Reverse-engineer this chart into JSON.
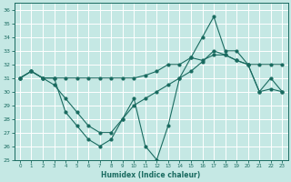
{
  "xlabel": "Humidex (Indice chaleur)",
  "bg_color": "#c5e8e4",
  "line_color": "#1a6b60",
  "grid_color": "#ffffff",
  "xlim": [
    -0.5,
    23.5
  ],
  "ylim": [
    25,
    36.5
  ],
  "yticks": [
    25,
    26,
    27,
    28,
    29,
    30,
    31,
    32,
    33,
    34,
    35,
    36
  ],
  "xticks": [
    0,
    1,
    2,
    3,
    4,
    5,
    6,
    7,
    8,
    9,
    10,
    11,
    12,
    13,
    14,
    15,
    16,
    17,
    18,
    19,
    20,
    21,
    22,
    23
  ],
  "series1_x": [
    0,
    1,
    2,
    3,
    4,
    5,
    6,
    7,
    8,
    9,
    10,
    11,
    12,
    13,
    14,
    15,
    16,
    17,
    18,
    19,
    20,
    21,
    22,
    23
  ],
  "series1_y": [
    31,
    31.5,
    31,
    31,
    31,
    31,
    31,
    31,
    31,
    31,
    31,
    31.2,
    31.5,
    32,
    32,
    32.5,
    32.3,
    32.7,
    32.7,
    32.3,
    32,
    32,
    32,
    32
  ],
  "series2_x": [
    0,
    1,
    2,
    3,
    4,
    5,
    6,
    7,
    8,
    9,
    10,
    11,
    12,
    13,
    14,
    15,
    16,
    17,
    18,
    19,
    20,
    21,
    22,
    23
  ],
  "series2_y": [
    31,
    31.5,
    31,
    30.5,
    29.5,
    28.5,
    27.5,
    27,
    27,
    28,
    29,
    29.5,
    30,
    30.5,
    31,
    31.5,
    32.2,
    33,
    32.7,
    32.3,
    32,
    30,
    30.2,
    30
  ],
  "series3_x": [
    0,
    1,
    2,
    3,
    4,
    5,
    6,
    7,
    8,
    9,
    10,
    11,
    12,
    13,
    14,
    15,
    16,
    17,
    18,
    19,
    20,
    21,
    22,
    23
  ],
  "series3_y": [
    31,
    31.5,
    31,
    31,
    28.5,
    27.5,
    26.5,
    26,
    26.5,
    28,
    29.5,
    26,
    25,
    27.5,
    31,
    32.5,
    34,
    35.5,
    33,
    33,
    32,
    30,
    31,
    30
  ]
}
